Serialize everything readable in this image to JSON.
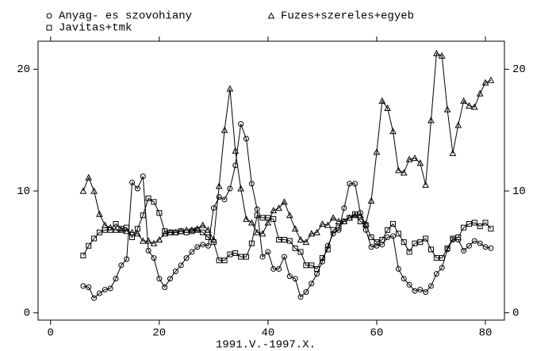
{
  "chart_data": {
    "type": "line",
    "xlabel": "1991.V.-1997.X.",
    "x": [
      6,
      7,
      8,
      9,
      10,
      11,
      12,
      13,
      14,
      15,
      16,
      17,
      18,
      19,
      20,
      21,
      22,
      23,
      24,
      25,
      26,
      27,
      28,
      29,
      30,
      31,
      32,
      33,
      34,
      35,
      36,
      37,
      38,
      39,
      40,
      41,
      42,
      43,
      44,
      45,
      46,
      47,
      48,
      49,
      50,
      51,
      52,
      53,
      54,
      55,
      56,
      57,
      58,
      59,
      60,
      61,
      62,
      63,
      64,
      65,
      66,
      67,
      68,
      69,
      70,
      71,
      72,
      73,
      74,
      75,
      76,
      77,
      78,
      79,
      80,
      81
    ],
    "series": [
      {
        "name": "Anyag- es szovohiany",
        "marker": "circle",
        "color": "#000000",
        "values": [
          2.2,
          2.1,
          1.2,
          1.6,
          1.9,
          2.0,
          2.8,
          3.9,
          4.4,
          10.7,
          10.2,
          11.2,
          5.1,
          4.5,
          2.8,
          2.1,
          2.8,
          3.4,
          3.9,
          4.5,
          5.0,
          5.4,
          5.6,
          5.5,
          8.6,
          9.5,
          9.3,
          10.2,
          12.1,
          15.5,
          14.3,
          10.6,
          8.5,
          4.6,
          5.0,
          3.6,
          3.6,
          4.6,
          3.0,
          2.8,
          1.3,
          1.7,
          2.4,
          3.2,
          4.2,
          5.5,
          6.5,
          6.8,
          8.6,
          10.6,
          10.6,
          8.2,
          6.8,
          5.4,
          5.5,
          5.6,
          6.2,
          6.3,
          3.6,
          2.8,
          2.3,
          1.8,
          1.9,
          1.7,
          2.2,
          3.2,
          3.7,
          5.2,
          6.0,
          6.0,
          5.1,
          5.5,
          5.9,
          5.7,
          5.4,
          5.3
        ]
      },
      {
        "name": "Fuzes+szereles+egyeb",
        "marker": "triangle",
        "color": "#000000",
        "values": [
          10.0,
          11.1,
          10.0,
          8.1,
          7.2,
          7.0,
          6.8,
          6.8,
          6.7,
          6.6,
          6.5,
          5.9,
          5.9,
          5.7,
          6.0,
          6.5,
          6.6,
          6.6,
          6.7,
          6.8,
          6.8,
          6.9,
          7.2,
          6.8,
          6.0,
          10.4,
          15.0,
          18.4,
          13.3,
          10.2,
          7.7,
          7.4,
          6.6,
          6.5,
          7.4,
          8.4,
          8.6,
          9.1,
          8.0,
          6.9,
          6.0,
          5.8,
          6.5,
          6.6,
          7.3,
          7.2,
          7.8,
          7.5,
          7.5,
          7.8,
          8.0,
          8.0,
          7.3,
          9.2,
          13.2,
          17.4,
          16.8,
          14.9,
          11.7,
          11.5,
          12.6,
          12.7,
          12.3,
          10.5,
          15.8,
          21.3,
          21.1,
          16.7,
          13.1,
          15.4,
          17.4,
          17.0,
          16.9,
          18.0,
          18.9,
          19.1
        ]
      },
      {
        "name": "Javitas+tmk",
        "marker": "square",
        "color": "#000000",
        "values": [
          4.7,
          5.5,
          6.1,
          6.6,
          6.8,
          6.8,
          7.3,
          6.9,
          7.0,
          6.2,
          6.9,
          8.0,
          9.4,
          9.1,
          8.2,
          6.7,
          6.6,
          6.6,
          6.7,
          6.6,
          6.7,
          6.8,
          6.6,
          6.2,
          5.8,
          4.3,
          4.3,
          4.8,
          4.9,
          4.6,
          4.6,
          5.7,
          8.0,
          7.8,
          7.8,
          7.7,
          6.0,
          6.0,
          5.9,
          5.3,
          5.0,
          3.9,
          3.9,
          3.6,
          4.5,
          5.2,
          6.8,
          7.0,
          7.5,
          7.8,
          8.1,
          7.5,
          7.2,
          6.2,
          5.8,
          6.0,
          6.8,
          7.3,
          6.5,
          5.8,
          5.0,
          5.7,
          5.8,
          6.1,
          5.2,
          4.5,
          4.5,
          5.3,
          6.1,
          6.2,
          7.0,
          7.3,
          7.4,
          7.1,
          7.4,
          6.9
        ]
      }
    ],
    "xlim": [
      -2.3,
      83.5
    ],
    "xticks": [
      0,
      20,
      40,
      60,
      80
    ],
    "ylim": [
      -0.6,
      22.3
    ],
    "yticks": [
      0,
      10,
      20
    ]
  }
}
